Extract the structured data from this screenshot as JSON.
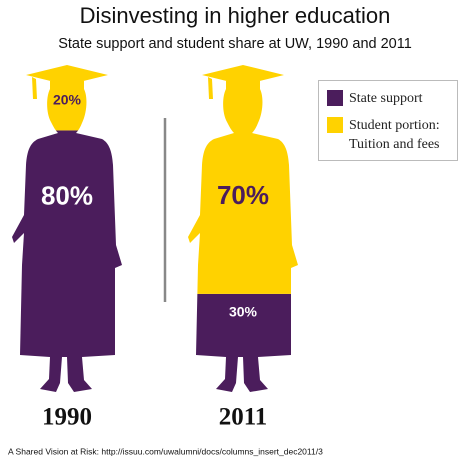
{
  "chart_data": {
    "type": "figure-stack",
    "title": "Disinvesting in higher education",
    "subtitle": "State support and student share at UW, 1990 and 2011",
    "categories": [
      "1990",
      "2011"
    ],
    "series": [
      {
        "name": "State support",
        "color": "#4b1d5c",
        "values": [
          80,
          30
        ],
        "value_labels": [
          "80%",
          "30%"
        ]
      },
      {
        "name": "Student portion: Tuition and fees",
        "color": "#ffd200",
        "values": [
          20,
          70
        ],
        "value_labels": [
          "20%",
          "70%"
        ]
      }
    ],
    "source": "A Shared Vision at Risk:  http://issuu.com/uwalumni/docs/columns_insert_dec2011/3"
  }
}
